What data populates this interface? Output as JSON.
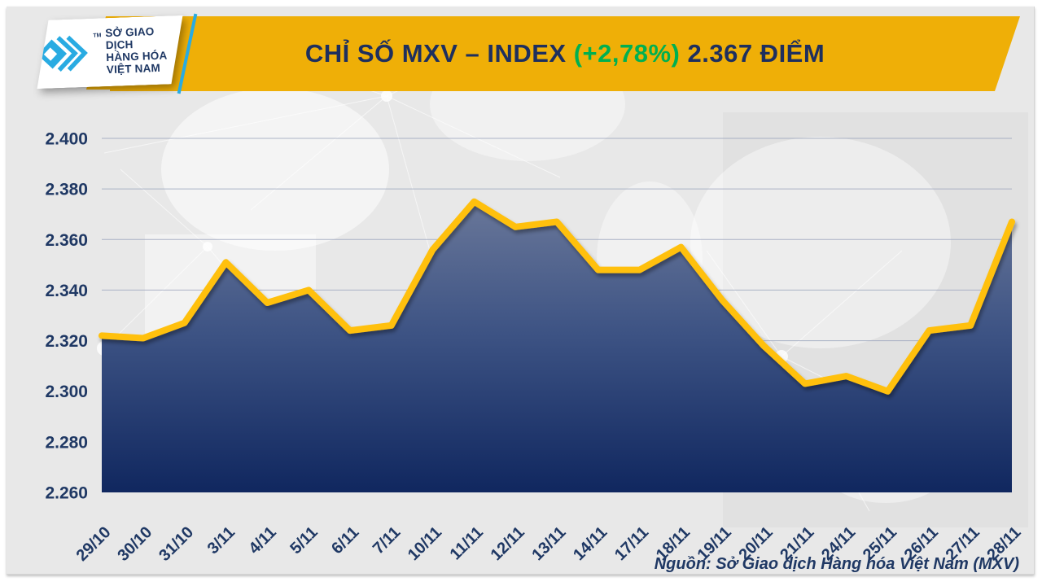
{
  "header": {
    "title_main": "CHỈ SỐ MXV – INDEX ",
    "title_change": "(+2,78%)",
    "title_value": " 2.367 ĐIỂM"
  },
  "logo": {
    "tm": "TM",
    "line1": "SỞ GIAO DỊCH",
    "line2": "HÀNG HÓA",
    "line3": "VIỆT NAM"
  },
  "footer": {
    "source": "Nguồn: Sở Giao dịch Hàng hóa Việt Nam (MXV)"
  },
  "colors": {
    "banner_yellow": "#efaf07",
    "line_yellow": "#ffc00a",
    "navy": "#1f3864",
    "green": "#00b050",
    "grid": "#9fa8bf",
    "fill_top": "#7e88a3",
    "fill_bottom": "#10275f",
    "logo_cyan": "#29abe2",
    "panel_gray": "#e8e8e8"
  },
  "chart_data": {
    "type": "area",
    "title": "CHỈ SỐ MXV – INDEX (+2,78%) 2.367 ĐIỂM",
    "categories": [
      "29/10",
      "30/10",
      "31/10",
      "3/11",
      "4/11",
      "5/11",
      "6/11",
      "7/11",
      "10/11",
      "11/11",
      "12/11",
      "13/11",
      "14/11",
      "17/11",
      "18/11",
      "19/11",
      "20/11",
      "21/11",
      "24/11",
      "25/11",
      "26/11",
      "27/11",
      "28/11"
    ],
    "values": [
      2322,
      2321,
      2327,
      2351,
      2335,
      2340,
      2324,
      2326,
      2356,
      2375,
      2365,
      2367,
      2348,
      2348,
      2357,
      2336,
      2318,
      2303,
      2306,
      2300,
      2324,
      2326,
      2367
    ],
    "y_ticks": [
      2400,
      2380,
      2360,
      2340,
      2320,
      2300,
      2280,
      2260
    ],
    "y_tick_labels": [
      "2.400",
      "2.380",
      "2.360",
      "2.340",
      "2.320",
      "2.300",
      "2.280",
      "2.260"
    ],
    "ylim": [
      2260,
      2400
    ],
    "grid": true,
    "legend": "none",
    "xlabel": "",
    "ylabel": ""
  }
}
